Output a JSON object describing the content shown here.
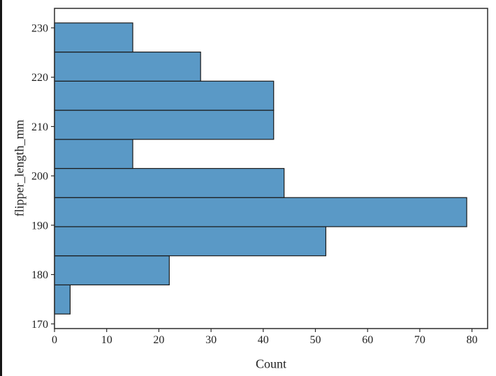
{
  "window": {
    "background": "#ffffff",
    "left_edge_color": "#161616"
  },
  "chart_data": {
    "type": "bar",
    "orientation": "horizontal",
    "title": "",
    "xlabel": "Count",
    "ylabel": "flipper_length_mm",
    "bin_edges": [
      172.0,
      177.9,
      183.8,
      189.7,
      195.6,
      201.5,
      207.4,
      213.3,
      219.2,
      225.1,
      231.0
    ],
    "counts": [
      3,
      22,
      52,
      79,
      44,
      15,
      42,
      42,
      28,
      15
    ],
    "xticks": [
      0,
      10,
      20,
      30,
      40,
      50,
      60,
      70,
      80
    ],
    "yticks": [
      170,
      180,
      190,
      200,
      210,
      220,
      230
    ],
    "xlim": [
      0,
      83
    ],
    "ylim": [
      169.05,
      233.95
    ],
    "grid": false,
    "legend": false,
    "bar_fill": "#5a99c6",
    "bar_edge": "#1a1a1a",
    "axis_color": "#2b2b2b",
    "text_color": "#1f1f1f",
    "tick_font_size": 16,
    "label_font_size": 18
  }
}
